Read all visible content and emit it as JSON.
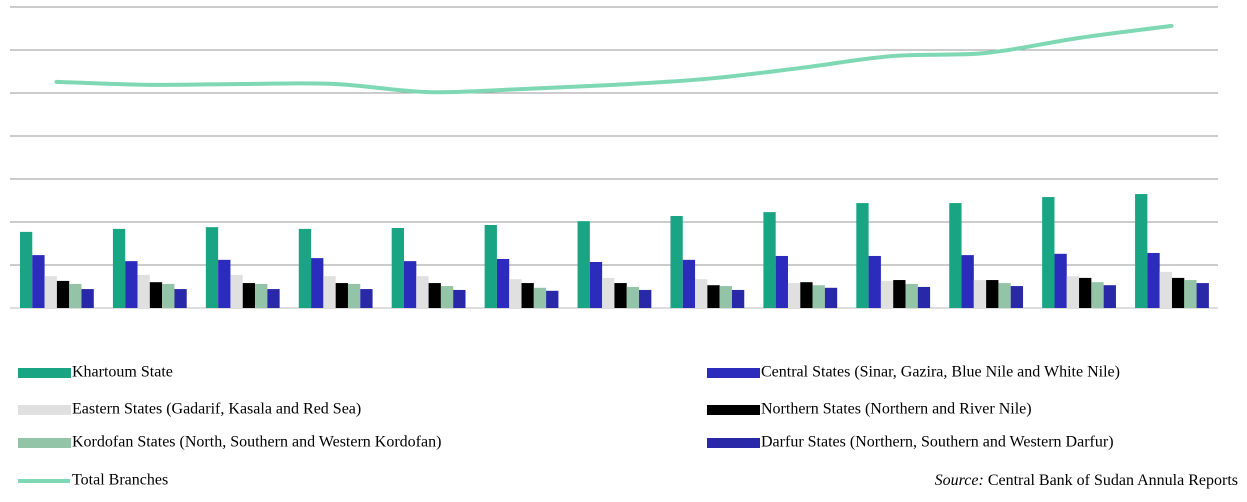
{
  "chart_data": {
    "type": "bar",
    "categories": [
      null,
      null,
      null,
      null,
      null,
      null,
      null,
      null,
      null,
      null,
      null,
      null,
      null
    ],
    "ylim": [
      0,
      7
    ],
    "yticks": [
      0,
      1,
      2,
      3,
      4,
      5,
      6,
      7
    ],
    "grid": true,
    "series": [
      {
        "name": "Khartoum State",
        "color": "#19a583",
        "values": [
          1.77,
          1.84,
          1.88,
          1.84,
          1.86,
          1.93,
          2.02,
          2.14,
          2.23,
          2.44,
          2.44,
          2.58,
          2.65
        ]
      },
      {
        "name": "Central States (Sinar, Gazira, Blue Nile and White Nile)",
        "color": "#2c2cbc",
        "values": [
          1.23,
          1.09,
          1.12,
          1.16,
          1.09,
          1.14,
          1.07,
          1.12,
          1.21,
          1.21,
          1.23,
          1.26,
          1.28
        ]
      },
      {
        "name": "Eastern States (Gadarif, Kasala and Red Sea)",
        "color": "#e0e0e0",
        "values": [
          0.74,
          0.77,
          0.77,
          0.74,
          0.74,
          0.67,
          0.7,
          0.67,
          0.58,
          0.63,
          0.65,
          0.74,
          0.84
        ]
      },
      {
        "name": "Northern States (Northern and River Nile)",
        "color": "#000000",
        "values": [
          0.63,
          0.6,
          0.58,
          0.58,
          0.58,
          0.58,
          0.58,
          0.53,
          0.6,
          0.65,
          0.65,
          0.7,
          0.7
        ]
      },
      {
        "name": "Kordofan States (North, Southern and Western Kordofan)",
        "color": "#93c4a8",
        "values": [
          0.56,
          0.56,
          0.56,
          0.56,
          0.51,
          0.47,
          0.49,
          0.51,
          0.53,
          0.56,
          0.58,
          0.6,
          0.65
        ]
      },
      {
        "name": "Darfur States (Northern, Southern and Western Darfur)",
        "color": "#2828a8",
        "values": [
          0.44,
          0.44,
          0.44,
          0.44,
          0.42,
          0.4,
          0.42,
          0.42,
          0.47,
          0.49,
          0.51,
          0.53,
          0.58
        ]
      },
      {
        "name": "Total Branches",
        "type": "line",
        "color": "#7ed8b4",
        "values": [
          5.26,
          5.19,
          5.21,
          5.21,
          5.02,
          5.09,
          5.19,
          5.33,
          5.58,
          5.86,
          5.93,
          6.28,
          6.56
        ]
      }
    ],
    "source_label": "Source:",
    "source": "Central Bank of Sudan Annula Reports"
  }
}
